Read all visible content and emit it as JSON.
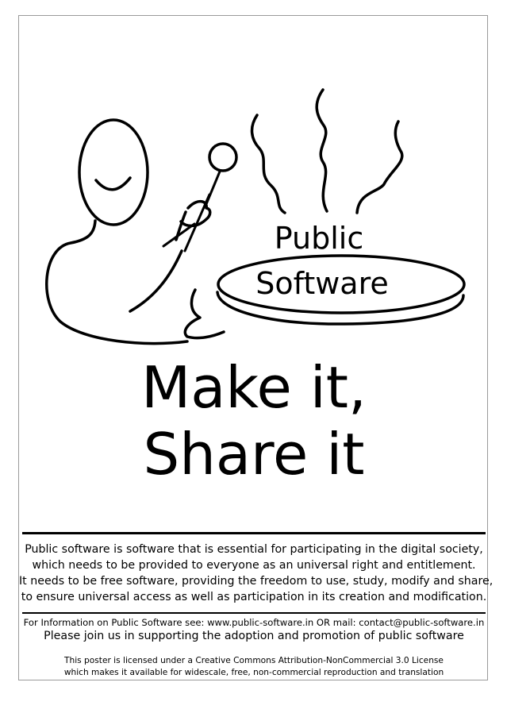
{
  "brand": {
    "line1": "Public",
    "line2": "Software"
  },
  "headline": {
    "line1": "Make it,",
    "line2": "Share it"
  },
  "description": {
    "lines": [
      "Public software is software that is essential for participating in the digital society,",
      "which needs to be provided to everyone as an universal right and entitlement.",
      "It needs to be free software, providing the freedom to use, study, modify and share,",
      "to ensure universal access as well as participation in its creation and modification."
    ]
  },
  "footer": {
    "info": "For Information on Public Software see: www.public-software.in OR mail: contact@public-software.in",
    "join": "Please join us in supporting the adoption and promotion of public software",
    "license_lines": [
      "This poster is licensed under a Creative Commons Attribution-NonCommercial 3.0 License",
      "which makes it available for widescale, free, non-commercial reproduction and translation"
    ]
  },
  "icons": [
    "smiley-chef-drawing",
    "steam-lines",
    "serving-plate"
  ],
  "colors": {
    "ink": "#000000",
    "background": "#ffffff",
    "frame": "#9a9a9a"
  }
}
